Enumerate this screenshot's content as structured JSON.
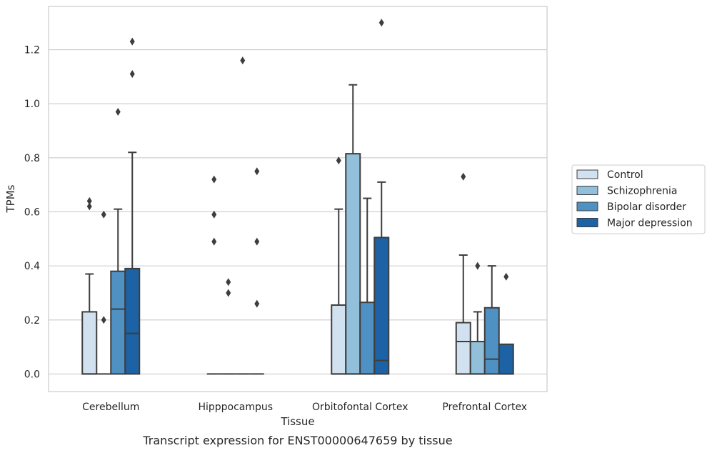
{
  "chart_data": {
    "type": "boxplot",
    "xlabel": "Tissue",
    "ylabel": "TPMs",
    "caption": "Transcript expression for ENST00000647659 by tissue",
    "ylim": [
      -0.065,
      1.36
    ],
    "yticks": [
      "0.0",
      "0.2",
      "0.4",
      "0.6",
      "0.8",
      "1.0",
      "1.2"
    ],
    "grid": true,
    "legend_placement": "right",
    "categories": [
      "Cerebellum",
      "Hipppocampus",
      "Orbitofontal Cortex",
      "Prefrontal Cortex"
    ],
    "series": [
      {
        "name": "Control",
        "color": "#d1e1f0",
        "boxes": [
          {
            "min": 0,
            "q1": 0,
            "median": 0,
            "q3": 0.23,
            "max": 0.37,
            "outliers": [
              0.62,
              0.64
            ]
          },
          {
            "min": 0,
            "q1": 0,
            "median": 0,
            "q3": 0,
            "max": 0,
            "outliers": [
              0.49,
              0.59,
              0.72
            ]
          },
          {
            "min": 0,
            "q1": 0,
            "median": 0,
            "q3": 0.255,
            "max": 0.61,
            "outliers": [
              0.79
            ]
          },
          {
            "min": 0,
            "q1": 0,
            "median": 0.12,
            "q3": 0.19,
            "max": 0.44,
            "outliers": [
              0.73
            ]
          }
        ]
      },
      {
        "name": "Schizophrenia",
        "color": "#92bfd9",
        "boxes": [
          {
            "min": 0,
            "q1": 0,
            "median": 0,
            "q3": 0,
            "max": 0,
            "outliers": [
              0.2,
              0.59
            ]
          },
          {
            "min": 0,
            "q1": 0,
            "median": 0,
            "q3": 0,
            "max": 0,
            "outliers": [
              0.3,
              0.34
            ]
          },
          {
            "min": 0,
            "q1": 0,
            "median": 0,
            "q3": 0.815,
            "max": 1.07,
            "outliers": []
          },
          {
            "min": 0,
            "q1": 0,
            "median": 0,
            "q3": 0.12,
            "max": 0.23,
            "outliers": [
              0.4
            ]
          }
        ]
      },
      {
        "name": "Bipolar disorder",
        "color": "#5091c4",
        "boxes": [
          {
            "min": 0,
            "q1": 0,
            "median": 0.24,
            "q3": 0.38,
            "max": 0.61,
            "outliers": [
              0.97
            ]
          },
          {
            "min": 0,
            "q1": 0,
            "median": 0,
            "q3": 0,
            "max": 0,
            "outliers": [
              1.16
            ]
          },
          {
            "min": 0,
            "q1": 0,
            "median": 0,
            "q3": 0.265,
            "max": 0.65,
            "outliers": []
          },
          {
            "min": 0,
            "q1": 0,
            "median": 0.055,
            "q3": 0.245,
            "max": 0.4,
            "outliers": []
          }
        ]
      },
      {
        "name": "Major depression",
        "color": "#1c62a5",
        "boxes": [
          {
            "min": 0,
            "q1": 0,
            "median": 0.15,
            "q3": 0.39,
            "max": 0.82,
            "outliers": [
              1.11,
              1.23
            ]
          },
          {
            "min": 0,
            "q1": 0,
            "median": 0,
            "q3": 0,
            "max": 0,
            "outliers": [
              0.26,
              0.49,
              0.75
            ]
          },
          {
            "min": 0,
            "q1": 0,
            "median": 0.05,
            "q3": 0.505,
            "max": 0.71,
            "outliers": [
              1.3
            ]
          },
          {
            "min": 0,
            "q1": 0,
            "median": 0,
            "q3": 0.11,
            "max": 0.11,
            "outliers": [
              0.36
            ]
          }
        ]
      }
    ]
  }
}
